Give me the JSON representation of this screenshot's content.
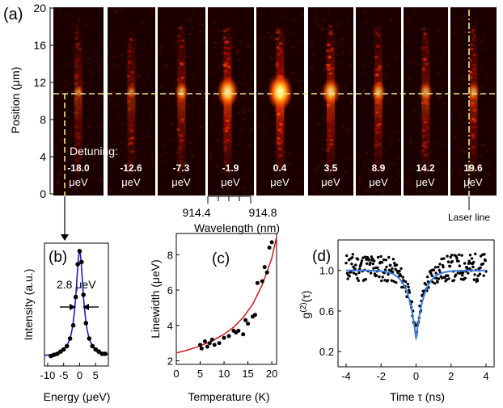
{
  "panel_a": {
    "label": "(a)",
    "ylabel": "Position (",
    "ylabel_mu": "μ",
    "ylabel_unit": "m)",
    "yticks": [
      "0",
      "4",
      "8",
      "12",
      "16",
      "20"
    ],
    "detuning_label": "Detuning:",
    "detunings": [
      "-18.0",
      "-12.6",
      "-7.3",
      "-1.9",
      "0.4",
      "3.5",
      "8.9",
      "14.2",
      "19.6"
    ],
    "unit": "μeV",
    "brightness": [
      0.18,
      0.2,
      0.4,
      0.8,
      1.0,
      0.65,
      0.45,
      0.38,
      0.35
    ],
    "wl_ticks": [
      "914.4",
      "914.8"
    ],
    "wl_label": "Wavelength (nm)",
    "laser_label": "Laser line",
    "colors": {
      "map_dark": "#220000",
      "map_mid": "#cc1100",
      "map_hot": "#ffff80",
      "dash": "#f2e88a"
    }
  },
  "chart_data": [
    {
      "type": "line",
      "label": "(b)",
      "xlabel": "Energy (μeV)",
      "ylabel": "Intensity (a.u.)",
      "annotation": "2.8 μeV",
      "xlim": [
        -11,
        9
      ],
      "xticks": [
        "-10",
        "-5",
        "0",
        "5"
      ],
      "ylim": [
        0,
        1.05
      ],
      "series": [
        {
          "type": "scatter",
          "x": [
            -9,
            -8,
            -7,
            -6,
            -5,
            -4,
            -3,
            -2,
            -1.2,
            -0.6,
            0,
            0.6,
            1.2,
            2,
            3,
            4,
            5,
            6,
            7,
            8
          ],
          "y": [
            0.04,
            0.05,
            0.06,
            0.08,
            0.1,
            0.13,
            0.2,
            0.32,
            0.58,
            0.88,
            1.0,
            0.9,
            0.6,
            0.34,
            0.2,
            0.13,
            0.1,
            0.08,
            0.06,
            0.06
          ]
        },
        {
          "type": "line",
          "fwhm": 2.8,
          "color": "#1a1ad0"
        }
      ]
    },
    {
      "type": "scatter",
      "label": "(c)",
      "xlabel": "Temperature (K)",
      "ylabel": "Linewidth (μeV)",
      "xlim": [
        0,
        21
      ],
      "ylim": [
        1.8,
        9.2
      ],
      "xticks": [
        "0",
        "5",
        "10",
        "15",
        "20"
      ],
      "yticks": [
        "2",
        "4",
        "6",
        "8"
      ],
      "series": [
        {
          "type": "scatter",
          "x": [
            5,
            5.3,
            6,
            6.5,
            7,
            7.5,
            8,
            9,
            10,
            11,
            12,
            12.5,
            13,
            14,
            14.5,
            15,
            16,
            16.5,
            17,
            18,
            18.5,
            19,
            19.5,
            20
          ],
          "y": [
            2.9,
            2.7,
            3.1,
            2.8,
            3.0,
            3.2,
            2.9,
            3.0,
            3.3,
            3.4,
            3.7,
            3.6,
            3.7,
            3.5,
            4.3,
            4.1,
            4.5,
            4.6,
            6.4,
            6.5,
            7.3,
            7.0,
            8.4,
            8.7
          ]
        },
        {
          "type": "line",
          "color": "#dd1111",
          "x": [
            0,
            2,
            4,
            6,
            8,
            10,
            12,
            14,
            16,
            18,
            20,
            21
          ],
          "y": [
            2.45,
            2.58,
            2.75,
            2.95,
            3.2,
            3.5,
            3.9,
            4.45,
            5.2,
            6.3,
            7.8,
            9.0
          ]
        }
      ]
    },
    {
      "type": "scatter",
      "label": "(d)",
      "xlabel": "Time τ (ns)",
      "ylabel": "g(2)(τ)",
      "xlim": [
        -4,
        4
      ],
      "ylim": [
        0.05,
        1.3
      ],
      "xticks": [
        "-4",
        "-2",
        "0",
        "2",
        "4"
      ],
      "yticks": [
        "0.2",
        "0.6",
        "1.0"
      ],
      "series": [
        {
          "type": "scatter",
          "note": "about 250 noisy points near 1.0 with an antibunching dip to about 0.3 at tau = 0"
        },
        {
          "type": "line",
          "color": "#3a7de0",
          "baseline": 1.0,
          "dip_min": 0.32,
          "tau_width_ns": 0.45
        }
      ]
    }
  ]
}
